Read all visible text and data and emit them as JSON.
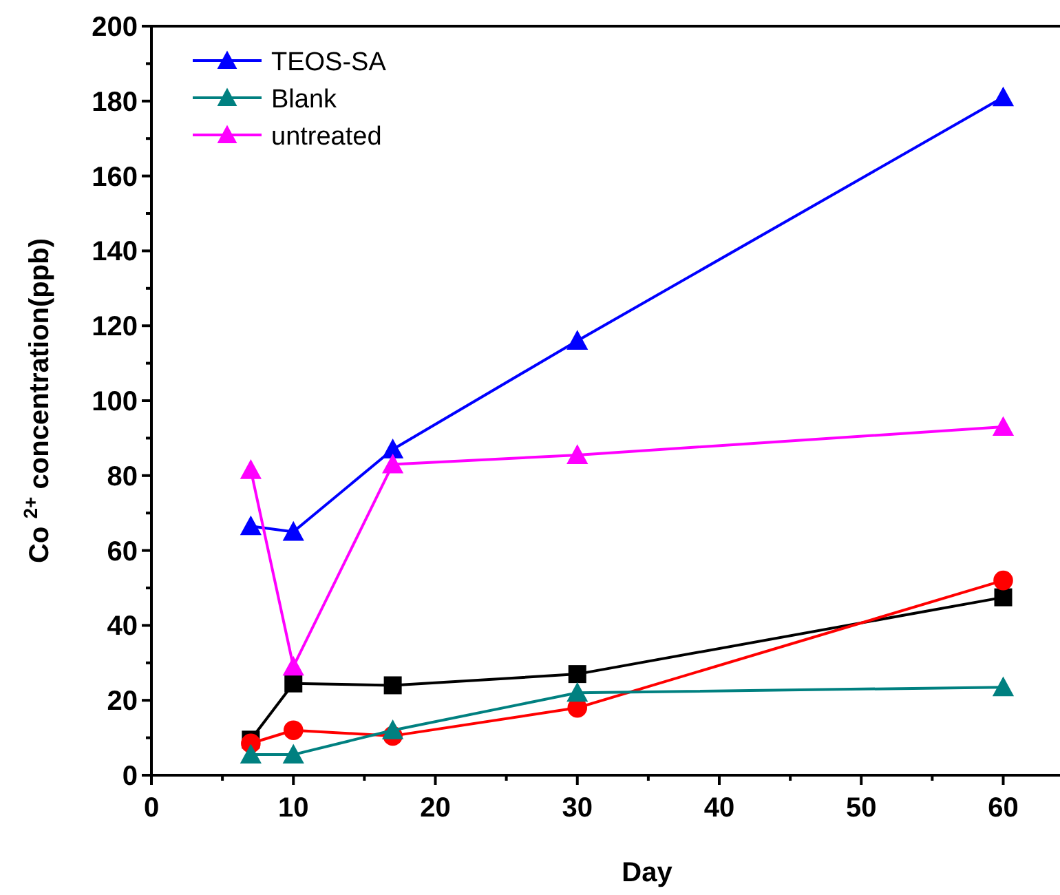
{
  "chart_data": {
    "type": "line",
    "xlabel": "Day",
    "ylabel": "Co $^{2+}$ concentration(ppb)",
    "xlim": [
      0,
      64
    ],
    "ylim": [
      0,
      200
    ],
    "xticks": [
      0,
      {
        "value": 5,
        "label": null
      },
      10,
      {
        "value": 15,
        "label": null
      },
      20,
      {
        "value": 25,
        "label": null
      },
      30,
      {
        "value": 35,
        "label": null
      },
      40,
      {
        "value": 45,
        "label": null
      },
      50,
      {
        "value": 55,
        "label": null
      },
      60
    ],
    "yticks": [
      0,
      {
        "value": 10,
        "label": null
      },
      20,
      {
        "value": 30,
        "label": null
      },
      40,
      {
        "value": 50,
        "label": null
      },
      60,
      {
        "value": 70,
        "label": null
      },
      80,
      {
        "value": 90,
        "label": null
      },
      100,
      {
        "value": 110,
        "label": null
      },
      120,
      {
        "value": 130,
        "label": null
      },
      140,
      {
        "value": 150,
        "label": null
      },
      160,
      {
        "value": 170,
        "label": null
      },
      180,
      {
        "value": 190,
        "label": null
      },
      200
    ],
    "grid": false,
    "legend": "top left",
    "line_style": "solid",
    "series": [
      {
        "color": "#000000",
        "marker": "square",
        "x": [
          7,
          10,
          17,
          30,
          60
        ],
        "values": [
          9.5,
          24.5,
          24,
          27,
          47.5
        ]
      },
      {
        "color": "#ff0000",
        "marker": "circle",
        "x": [
          7,
          10,
          17,
          30,
          60
        ],
        "values": [
          8.5,
          12,
          10.5,
          18,
          52
        ]
      },
      {
        "name": "TEOS-SA",
        "color": "#0000ff",
        "marker": "triangle",
        "x": [
          7,
          10,
          17,
          30,
          60
        ],
        "values": [
          66.5,
          65,
          87,
          116,
          181
        ]
      },
      {
        "name": "Blank",
        "color": "#008080",
        "marker": "triangle",
        "x": [
          7,
          10,
          17,
          30,
          60
        ],
        "values": [
          5.5,
          5.5,
          12,
          22,
          23.5
        ]
      },
      {
        "name": "untreated",
        "color": "#ff00ff",
        "marker": "triangle",
        "x": [
          7,
          10,
          17,
          30,
          60
        ],
        "values": [
          81.5,
          29,
          83,
          85.5,
          93
        ]
      }
    ]
  }
}
